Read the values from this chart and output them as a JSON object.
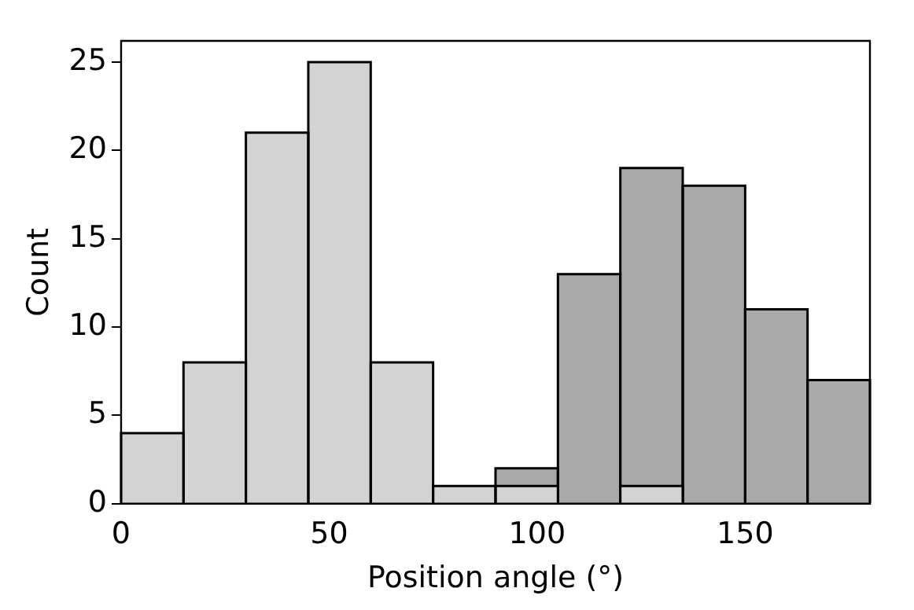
{
  "chart_data": {
    "type": "histogram",
    "xlabel": "Position angle (°)",
    "ylabel": "Count",
    "bins": [
      0,
      15,
      30,
      45,
      60,
      75,
      90,
      105,
      120,
      135,
      150,
      165,
      180
    ],
    "series": [
      {
        "color": "#d3d3d3",
        "values": [
          4,
          8,
          21,
          25,
          8,
          1,
          1,
          0,
          1,
          0,
          0,
          0
        ]
      },
      {
        "color": "#a9a9a9",
        "values": [
          0,
          0,
          0,
          0,
          0,
          0,
          2,
          13,
          19,
          18,
          11,
          7
        ]
      }
    ],
    "xlim": [
      0,
      180
    ],
    "xticks": [
      0,
      50,
      100,
      150
    ],
    "ylim": [
      0,
      26.2
    ],
    "yticks": [
      0,
      5,
      10,
      15,
      20,
      25
    ],
    "grid": false,
    "legend": false
  }
}
